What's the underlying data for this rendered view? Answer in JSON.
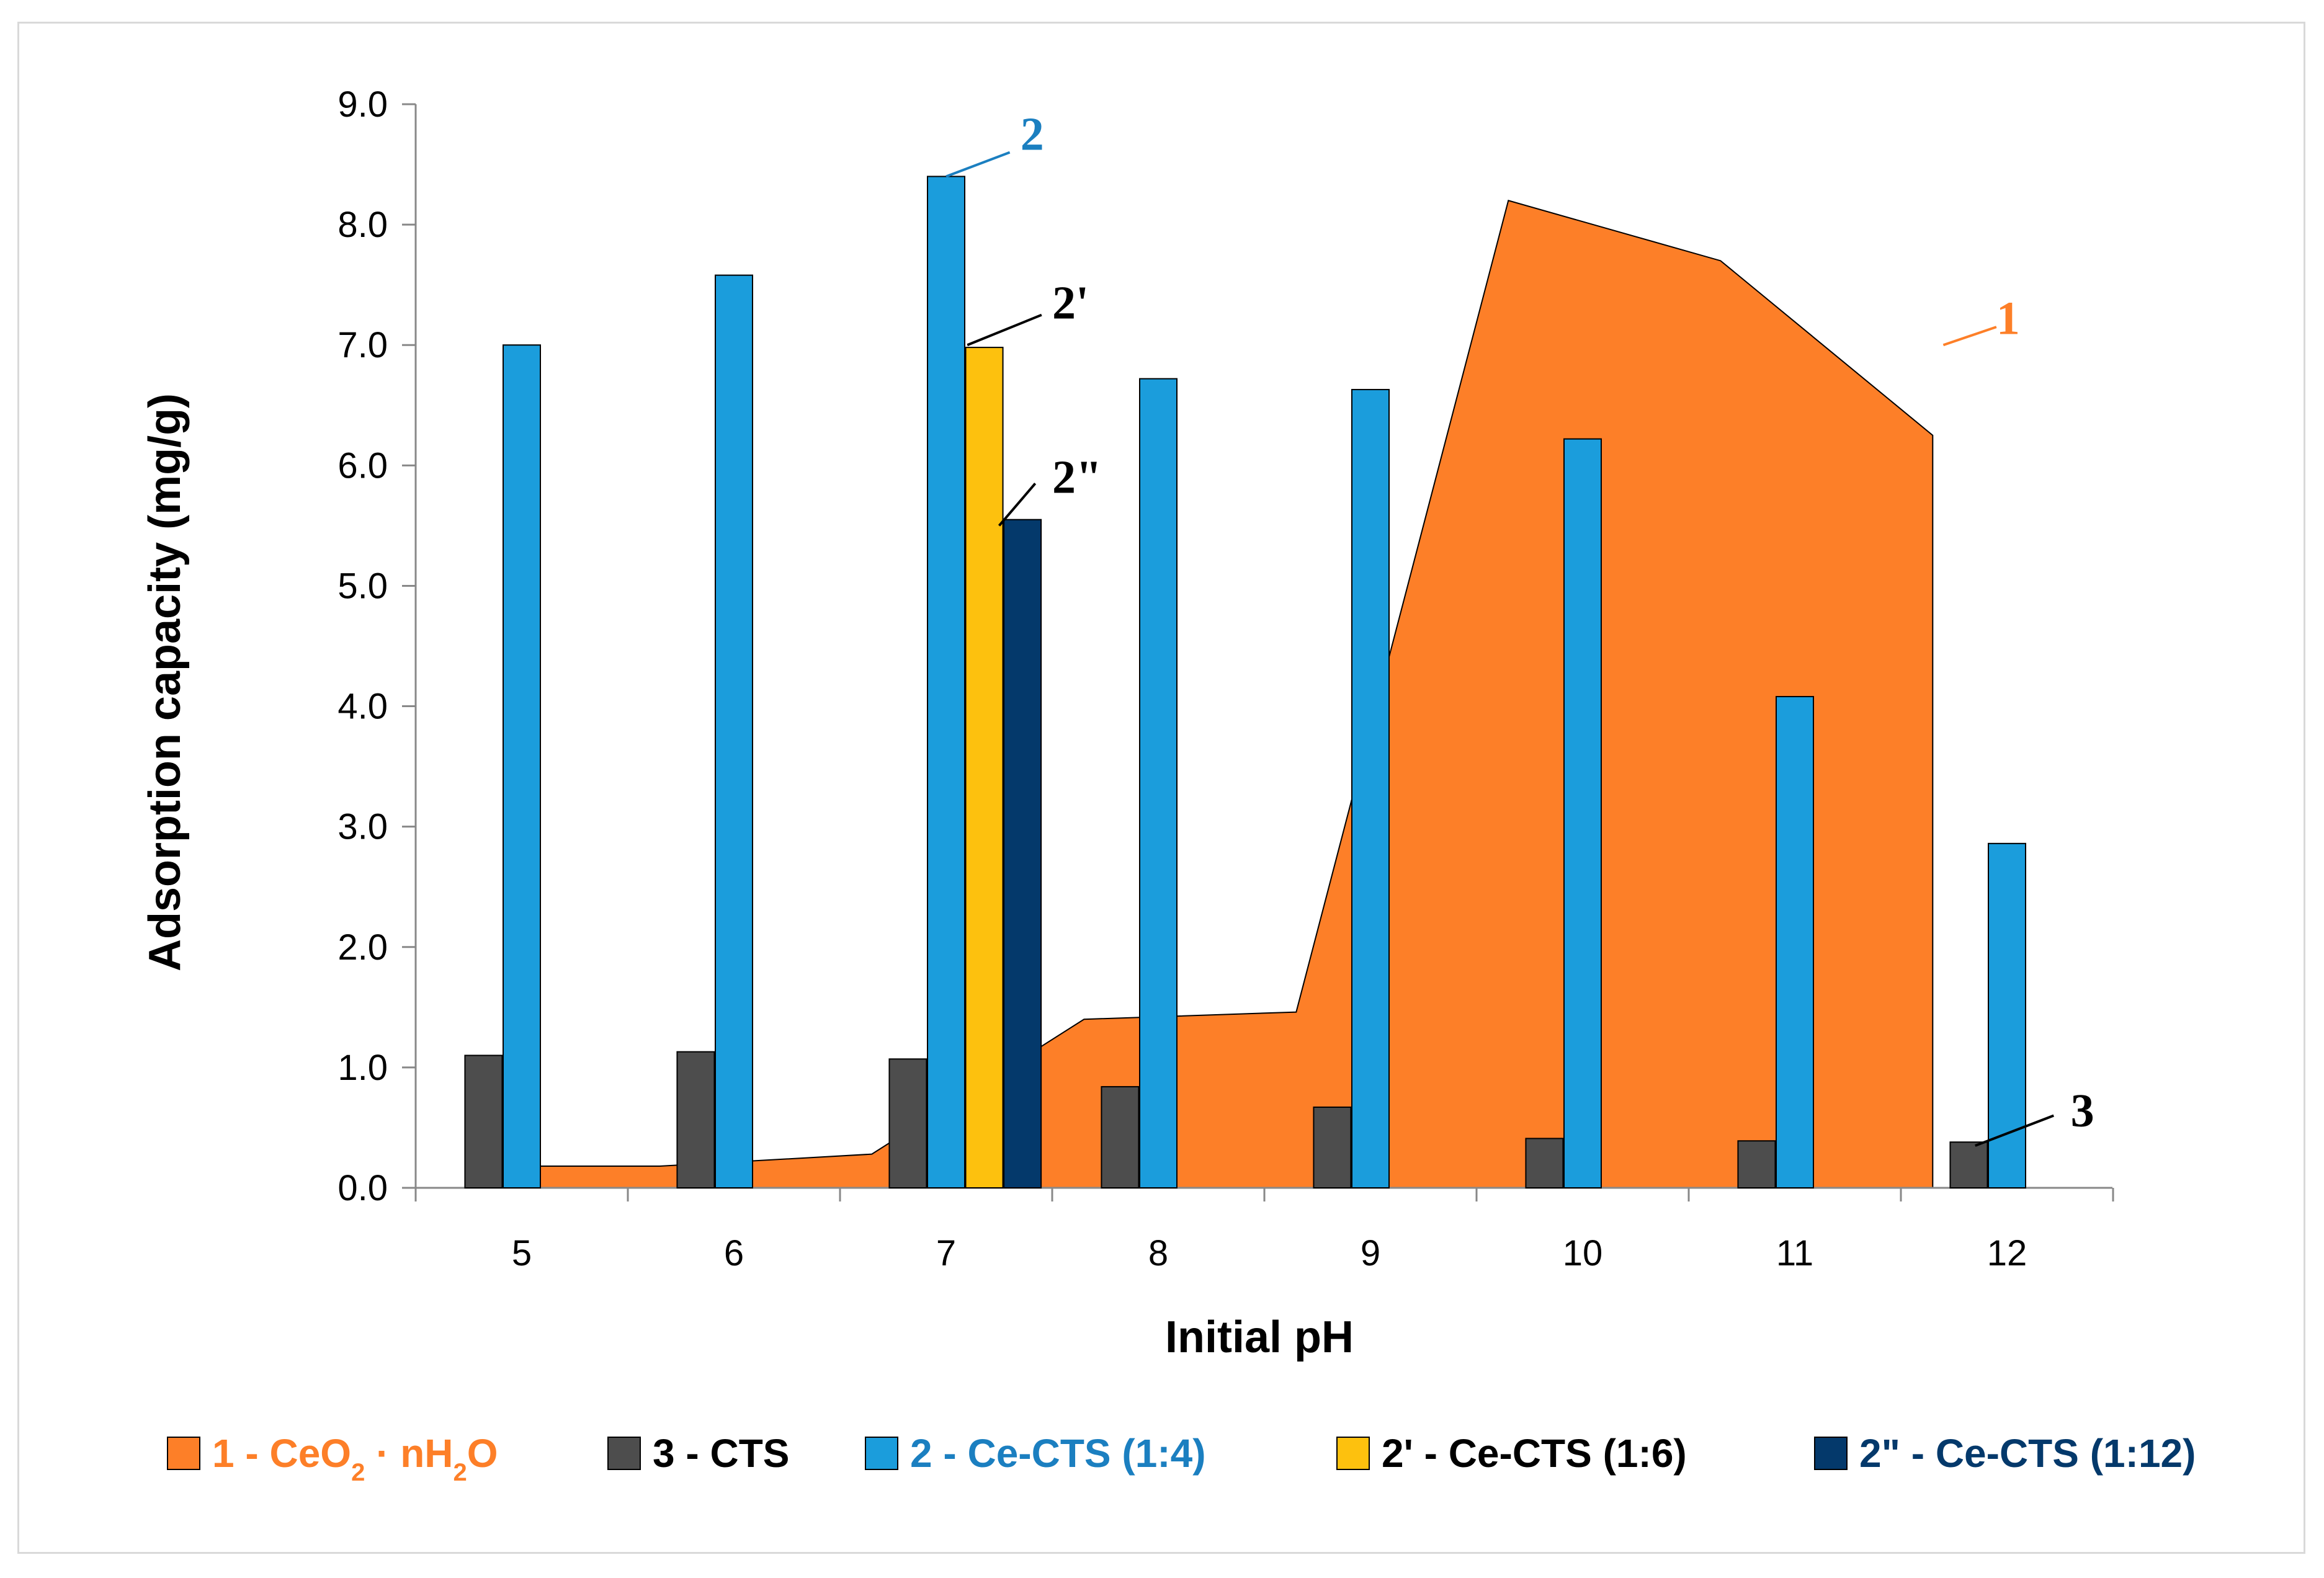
{
  "chart_data": {
    "type": "bar",
    "xlabel": "Initial pH",
    "ylabel": "Adsorption capacity  (mg/g)",
    "ylim": [
      0,
      9
    ],
    "yticks": [
      "0.0",
      "1.0",
      "2.0",
      "3.0",
      "4.0",
      "5.0",
      "6.0",
      "7.0",
      "8.0",
      "9.0"
    ],
    "categories": [
      "5",
      "6",
      "7",
      "8",
      "9",
      "10",
      "11",
      "12"
    ],
    "area_series": {
      "name": "1 - CeO2 · nH2O",
      "label_parts": [
        "1 - CeO",
        "2",
        " · nH",
        "2",
        "O"
      ],
      "color": "#fd7f28",
      "x": [
        5.0,
        5.65,
        6.65,
        7.65,
        8.65,
        9.65,
        10.65,
        11.65
      ],
      "values": [
        0.18,
        0.18,
        0.28,
        1.4,
        1.46,
        8.2,
        7.7,
        6.25
      ]
    },
    "bar_series": [
      {
        "name": "3 - CTS",
        "color": "#4d4d4d",
        "offset": -0.18,
        "values": [
          1.1,
          1.13,
          1.07,
          0.84,
          0.67,
          0.41,
          0.39,
          0.38
        ]
      },
      {
        "name": "2 - Ce-CTS (1:4)",
        "color": "#1b9ddc",
        "offset": 0.0,
        "values": [
          7.0,
          7.58,
          8.4,
          6.72,
          6.63,
          6.22,
          4.08,
          2.86
        ]
      },
      {
        "name": "2' - Ce-CTS (1:6)",
        "color": "#fdc10e",
        "offset": 0.18,
        "values": [
          null,
          null,
          6.98,
          null,
          null,
          null,
          null,
          null
        ]
      },
      {
        "name": "2\" - Ce-CTS (1:12)",
        "color": "#04396b",
        "offset": 0.36,
        "values": [
          null,
          null,
          5.55,
          null,
          null,
          null,
          null,
          null
        ]
      }
    ],
    "annotations": [
      {
        "text": "2",
        "color": "#1b7fc0",
        "tx": 7.35,
        "ty": 8.75,
        "lx1": 7.0,
        "ly1": 8.4,
        "lx2": 7.3,
        "ly2": 8.6
      },
      {
        "text": "2'",
        "color": "#000000",
        "tx": 7.5,
        "ty": 7.35,
        "lx1": 7.1,
        "ly1": 7.0,
        "lx2": 7.45,
        "ly2": 7.25
      },
      {
        "text": "2\"",
        "color": "#000000",
        "tx": 7.5,
        "ty": 5.9,
        "lx1": 7.25,
        "ly1": 5.5,
        "lx2": 7.42,
        "ly2": 5.85
      },
      {
        "text": "1",
        "color": "#fd7f28",
        "tx": 11.95,
        "ty": 7.22,
        "lx1": 11.7,
        "ly1": 7.0,
        "lx2": 11.95,
        "ly2": 7.15
      },
      {
        "text": "3",
        "color": "#000000",
        "tx": 12.3,
        "ty": 0.64,
        "lx1": 11.85,
        "ly1": 0.35,
        "lx2": 12.22,
        "ly2": 0.6
      }
    ],
    "legend": {
      "placement": "bottom",
      "items": [
        {
          "label_parts": [
            "1 - CeO",
            "2",
            " · nH",
            "2",
            "O"
          ],
          "color": "#fd7f28",
          "text_color": "#fd7f28"
        },
        {
          "label": "3 - CTS",
          "color": "#4d4d4d",
          "text_color": "#000000"
        },
        {
          "label": "2 - Ce-CTS (1:4)",
          "color": "#1b9ddc",
          "text_color": "#1b7fc0"
        },
        {
          "label": "2' - Ce-CTS (1:6)",
          "color": "#fdc10e",
          "text_color": "#000000"
        },
        {
          "label": "2\" - Ce-CTS (1:12)",
          "color": "#04396b",
          "text_color": "#04396b"
        }
      ]
    }
  }
}
